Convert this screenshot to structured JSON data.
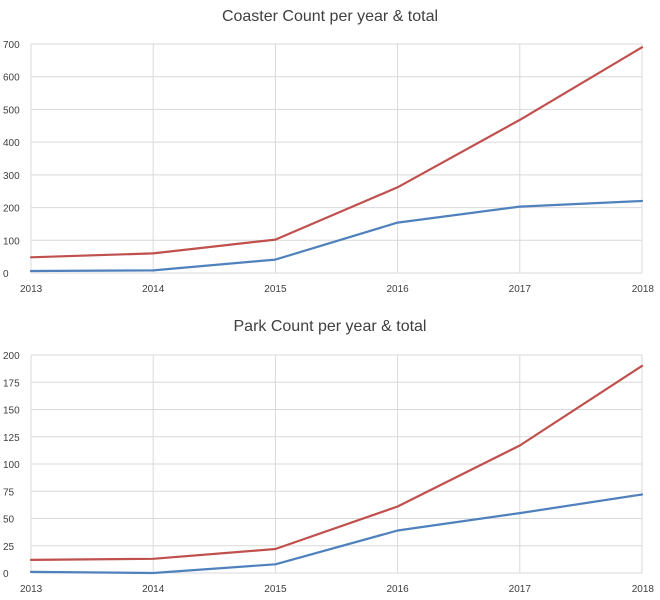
{
  "chart_data": [
    {
      "type": "line",
      "title": "Coaster Count per year & total",
      "x": [
        "2013",
        "2014",
        "2015",
        "2016",
        "2017",
        "2018"
      ],
      "ylim": [
        0,
        700
      ],
      "yticks": [
        0,
        100,
        200,
        300,
        400,
        500,
        600,
        700
      ],
      "grid": true,
      "series": [
        {
          "color": "#c0504d",
          "values": [
            48,
            60,
            102,
            262,
            468,
            690
          ]
        },
        {
          "color": "#4f81bd",
          "values": [
            6,
            8,
            41,
            154,
            203,
            220
          ]
        }
      ]
    },
    {
      "type": "line",
      "title": "Park Count per year & total",
      "x": [
        "2013",
        "2014",
        "2015",
        "2016",
        "2017",
        "2018"
      ],
      "ylim": [
        0,
        200
      ],
      "yticks": [
        0,
        25,
        50,
        75,
        100,
        125,
        150,
        175,
        200
      ],
      "grid": true,
      "series": [
        {
          "color": "#c0504d",
          "values": [
            12,
            13,
            22,
            61,
            117,
            190
          ]
        },
        {
          "color": "#4f81bd",
          "values": [
            1,
            0,
            8,
            39,
            55,
            72
          ]
        }
      ]
    }
  ]
}
